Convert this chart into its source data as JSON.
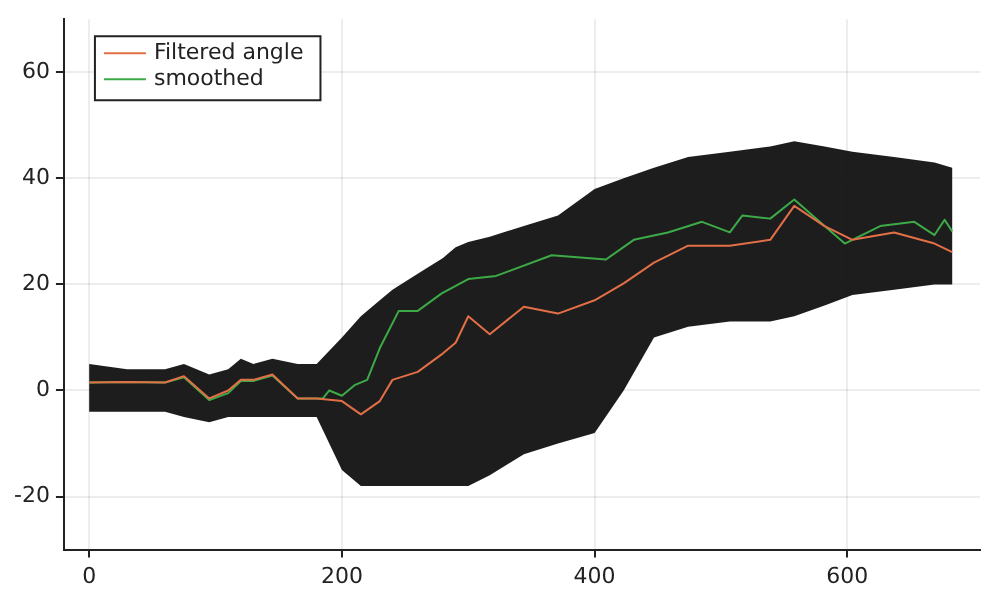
{
  "chart_data": {
    "type": "line",
    "xlim": [
      -20,
      705
    ],
    "ylim": [
      -30,
      70
    ],
    "xticks": [
      0,
      200,
      400,
      600
    ],
    "yticks": [
      -20,
      0,
      20,
      40,
      60
    ],
    "grid": true,
    "legend": "top left",
    "series": [
      {
        "name": "Filtered angle",
        "color": "#e26f46",
        "x": [
          0,
          30,
          60,
          75,
          95,
          110,
          120,
          130,
          145,
          165,
          180,
          200,
          215,
          230,
          240,
          260,
          280,
          290,
          300,
          317,
          344,
          371,
          400,
          423,
          447,
          474,
          507,
          539,
          558,
          582,
          604,
          637,
          669,
          683
        ],
        "values": [
          1.5,
          1.6,
          1.5,
          2.7,
          -1.5,
          0,
          2,
          2,
          3,
          -1.5,
          -1.5,
          -2,
          -4.5,
          -2,
          2,
          3.5,
          7,
          9,
          14,
          10.6,
          15.8,
          14.5,
          17,
          20.2,
          24.1,
          27.3,
          27.3,
          28.4,
          34.8,
          31,
          28.4,
          29.8,
          27.7,
          26.1
        ],
        "lower": [
          -4,
          -4,
          -4,
          -5,
          -6,
          -5,
          -5,
          -5,
          -5,
          -5,
          -5,
          -15,
          -18,
          -18,
          -18,
          -18,
          -18,
          -18,
          -18,
          -16,
          -12,
          -10,
          -8,
          0,
          10,
          12,
          13,
          13,
          14,
          16,
          18,
          19,
          20,
          20
        ],
        "upper": [
          5,
          4,
          4,
          5,
          3,
          4,
          6,
          5,
          6,
          5,
          5,
          10,
          14,
          17,
          19,
          22,
          25,
          27,
          28,
          29,
          31,
          33,
          38,
          40,
          42,
          44,
          45,
          46,
          47,
          46,
          45,
          44,
          43,
          42
        ]
      },
      {
        "name": "smoothed",
        "color": "#3daa48",
        "x": [
          0,
          30,
          60,
          75,
          95,
          110,
          120,
          130,
          145,
          165,
          185,
          190,
          200,
          210,
          220,
          230,
          245,
          260,
          279,
          300,
          322,
          366,
          409,
          431,
          458,
          485,
          507,
          517,
          539,
          558,
          582,
          598,
          626,
          653,
          669,
          677,
          683
        ],
        "values": [
          1.5,
          1.6,
          1.5,
          2.5,
          -1.8,
          -0.5,
          1.8,
          1.8,
          2.8,
          -1.5,
          -1.5,
          0,
          -1,
          1,
          2,
          8,
          15,
          15,
          18.3,
          21,
          21.6,
          25.5,
          24.7,
          28.4,
          29.8,
          31.8,
          29.8,
          33,
          32.4,
          36,
          31,
          27.7,
          31,
          31.8,
          29.3,
          32.2,
          30
        ]
      }
    ]
  }
}
